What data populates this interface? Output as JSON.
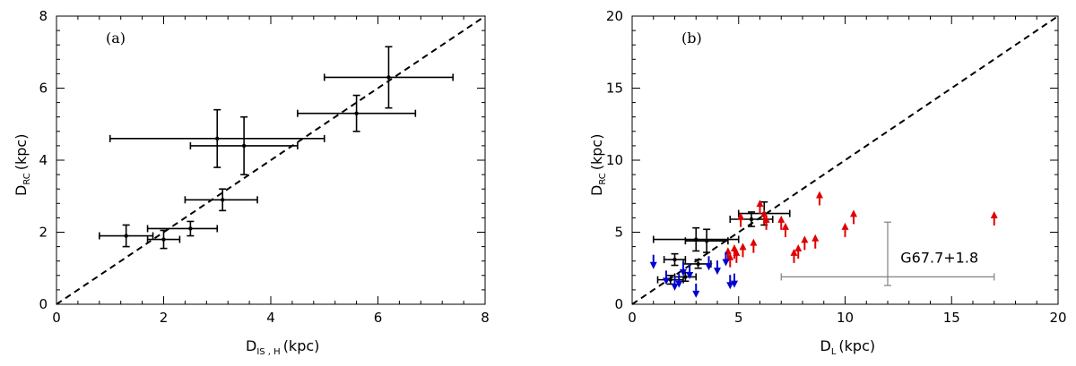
{
  "chart_data": [
    {
      "type": "scatter",
      "panel_label": "(a)",
      "xlabel": "D",
      "xlabel_sub": "IS , H",
      "xlabel_unit": "(kpc)",
      "ylabel": "D",
      "ylabel_sub": "RC",
      "ylabel_unit": "(kpc)",
      "xlim": [
        0,
        8
      ],
      "ylim": [
        0,
        8
      ],
      "xticks": [
        0,
        2,
        4,
        6,
        8
      ],
      "yticks": [
        0,
        2,
        4,
        6,
        8
      ],
      "reference_line": "y = x (dashed)",
      "series": [
        {
          "color": "#000000",
          "points": [
            {
              "x": 1.3,
              "y": 1.9,
              "xerr": [
                0.5,
                0.5
              ],
              "yerr": [
                0.3,
                0.3
              ]
            },
            {
              "x": 2.0,
              "y": 1.8,
              "xerr": [
                0.3,
                0.3
              ],
              "yerr": [
                0.25,
                0.25
              ]
            },
            {
              "x": 2.5,
              "y": 2.1,
              "xerr": [
                0.8,
                0.5
              ],
              "yerr": [
                0.2,
                0.2
              ]
            },
            {
              "x": 3.1,
              "y": 2.9,
              "xerr": [
                0.7,
                0.65
              ],
              "yerr": [
                0.3,
                0.3
              ]
            },
            {
              "x": 3.0,
              "y": 4.6,
              "xerr": [
                2.0,
                2.0
              ],
              "yerr": [
                0.8,
                0.8
              ]
            },
            {
              "x": 3.5,
              "y": 4.4,
              "xerr": [
                1.0,
                1.0
              ],
              "yerr": [
                0.8,
                0.8
              ]
            },
            {
              "x": 5.6,
              "y": 5.3,
              "xerr": [
                1.1,
                1.1
              ],
              "yerr": [
                0.5,
                0.5
              ]
            },
            {
              "x": 6.2,
              "y": 6.3,
              "xerr": [
                1.2,
                1.2
              ],
              "yerr": [
                0.85,
                0.85
              ]
            }
          ]
        }
      ]
    },
    {
      "type": "scatter",
      "panel_label": "(b)",
      "xlabel": "D",
      "xlabel_sub": "L",
      "xlabel_unit": "(kpc)",
      "ylabel": "D",
      "ylabel_sub": "RC",
      "ylabel_unit": "(kpc)",
      "xlim": [
        0,
        20
      ],
      "ylim": [
        0,
        20
      ],
      "xticks": [
        0,
        5,
        10,
        15,
        20
      ],
      "yticks": [
        0,
        5,
        10,
        15,
        20
      ],
      "reference_line": "y = x (dashed)",
      "annotation": "G67.7+1.8",
      "series": [
        {
          "color": "#000000",
          "points": [
            {
              "x": 1.8,
              "y": 1.7,
              "xerr": [
                0.6,
                0.6
              ],
              "yerr": [
                0.3,
                0.3
              ]
            },
            {
              "x": 2.0,
              "y": 3.1,
              "xerr": [
                0.5,
                0.5
              ],
              "yerr": [
                0.4,
                0.4
              ]
            },
            {
              "x": 2.5,
              "y": 1.9,
              "xerr": [
                0.5,
                0.5
              ],
              "yerr": [
                0.3,
                0.3
              ]
            },
            {
              "x": 3.1,
              "y": 2.8,
              "xerr": [
                0.7,
                0.6
              ],
              "yerr": [
                0.3,
                0.3
              ]
            },
            {
              "x": 3.0,
              "y": 4.5,
              "xerr": [
                2.0,
                2.0
              ],
              "yerr": [
                0.8,
                0.8
              ]
            },
            {
              "x": 3.5,
              "y": 4.4,
              "xerr": [
                1.0,
                1.0
              ],
              "yerr": [
                0.8,
                0.8
              ]
            },
            {
              "x": 5.6,
              "y": 5.9,
              "xerr": [
                1.0,
                1.0
              ],
              "yerr": [
                0.5,
                0.5
              ]
            },
            {
              "x": 6.2,
              "y": 6.3,
              "xerr": [
                1.2,
                1.2
              ],
              "yerr": [
                0.8,
                0.8
              ]
            },
            {
              "x": 12.0,
              "y": 1.9,
              "xerr": [
                5.0,
                5.0
              ],
              "yerr": [
                0.0,
                0.0
              ],
              "color": "#808080"
            },
            {
              "x": 12.0,
              "y": 3.5,
              "xerr": [
                0.0,
                0.0
              ],
              "yerr": [
                2.2,
                2.2
              ],
              "color": "#808080"
            }
          ]
        },
        {
          "color": "#e00000",
          "marker": "up-arrow (lower limit)",
          "points": [
            {
              "x": 4.5,
              "y": 3.4
            },
            {
              "x": 4.8,
              "y": 3.6
            },
            {
              "x": 4.6,
              "y": 3.0
            },
            {
              "x": 4.9,
              "y": 3.3
            },
            {
              "x": 5.1,
              "y": 5.8
            },
            {
              "x": 5.2,
              "y": 3.7
            },
            {
              "x": 5.7,
              "y": 4.0
            },
            {
              "x": 6.0,
              "y": 6.7
            },
            {
              "x": 6.2,
              "y": 6.0
            },
            {
              "x": 6.3,
              "y": 5.6
            },
            {
              "x": 7.0,
              "y": 5.6
            },
            {
              "x": 7.2,
              "y": 5.1
            },
            {
              "x": 7.6,
              "y": 3.3
            },
            {
              "x": 7.8,
              "y": 3.6
            },
            {
              "x": 8.1,
              "y": 4.2
            },
            {
              "x": 8.6,
              "y": 4.3
            },
            {
              "x": 8.8,
              "y": 7.3
            },
            {
              "x": 10.0,
              "y": 5.1
            },
            {
              "x": 10.4,
              "y": 6.0
            },
            {
              "x": 17.0,
              "y": 5.9
            }
          ]
        },
        {
          "color": "#0000d0",
          "marker": "down-arrow (upper limit)",
          "points": [
            {
              "x": 1.0,
              "y": 3.0
            },
            {
              "x": 1.6,
              "y": 1.9
            },
            {
              "x": 2.0,
              "y": 1.5
            },
            {
              "x": 2.2,
              "y": 1.7
            },
            {
              "x": 2.4,
              "y": 2.5
            },
            {
              "x": 2.7,
              "y": 2.3
            },
            {
              "x": 3.0,
              "y": 1.0
            },
            {
              "x": 3.6,
              "y": 2.9
            },
            {
              "x": 4.0,
              "y": 2.6
            },
            {
              "x": 4.4,
              "y": 3.2
            },
            {
              "x": 4.6,
              "y": 1.6
            },
            {
              "x": 4.8,
              "y": 1.7
            }
          ]
        }
      ]
    }
  ]
}
